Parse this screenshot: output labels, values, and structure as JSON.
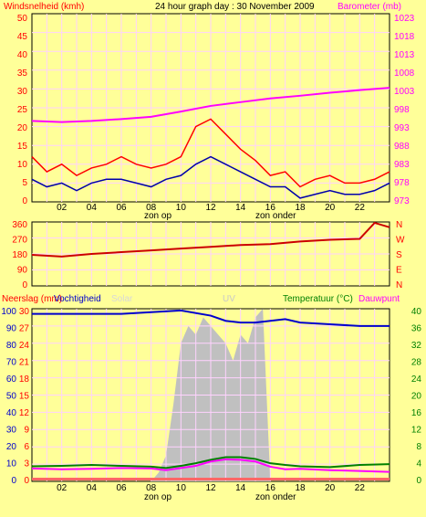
{
  "chart_data": [
    {
      "type": "line",
      "title": "24 hour graph day : 30 November 2009",
      "y_left_label": "Windsnelheid (kmh)",
      "y_right_label": "Barometer (mb)",
      "y_left_ticks": [
        "50",
        "45",
        "40",
        "35",
        "30",
        "25",
        "20",
        "15",
        "10",
        "5",
        "0"
      ],
      "y_right_ticks": [
        "1023",
        "1018",
        "1013",
        "1008",
        "1003",
        "998",
        "993",
        "988",
        "983",
        "978",
        "973"
      ],
      "y_left_range": [
        0,
        50
      ],
      "y_right_range": [
        973,
        1023
      ],
      "x_ticks": [
        "02",
        "04",
        "06",
        "08",
        "10",
        "12",
        "14",
        "16",
        "18",
        "20",
        "22"
      ],
      "x_range_hours": [
        0,
        24
      ],
      "x_annotations": [
        "zon op",
        "zon onder"
      ],
      "series": [
        {
          "color": "#ff00ff",
          "x": [
            0,
            2,
            4,
            6,
            8,
            10,
            12,
            14,
            16,
            18,
            20,
            22,
            24
          ],
          "values": [
            994.5,
            994.2,
            994.5,
            995,
            995.6,
            997,
            998.5,
            999.5,
            1000.5,
            1001.2,
            1002,
            1002.7,
            1003.3
          ]
        },
        {
          "color": "#ff0000",
          "x": [
            0,
            1,
            2,
            3,
            4,
            5,
            6,
            7,
            8,
            9,
            10,
            11,
            12,
            13,
            14,
            15,
            16,
            17,
            18,
            19,
            20,
            21,
            22,
            23,
            24
          ],
          "values": [
            12,
            8,
            10,
            7,
            9,
            10,
            12,
            10,
            9,
            10,
            12,
            20,
            22,
            18,
            14,
            11,
            7,
            8,
            4,
            6,
            7,
            5,
            5,
            6,
            8
          ]
        },
        {
          "color": "#0000aa",
          "x": [
            0,
            1,
            2,
            3,
            4,
            5,
            6,
            7,
            8,
            9,
            10,
            11,
            12,
            13,
            14,
            15,
            16,
            17,
            18,
            19,
            20,
            21,
            22,
            23,
            24
          ],
          "values": [
            6,
            4,
            5,
            3,
            5,
            6,
            6,
            5,
            4,
            6,
            7,
            10,
            12,
            10,
            8,
            6,
            4,
            4,
            1,
            2,
            3,
            2,
            2,
            3,
            5
          ]
        }
      ]
    },
    {
      "type": "line",
      "y_left_ticks": [
        "360",
        "270",
        "180",
        "90",
        "0"
      ],
      "y_left_range": [
        0,
        360
      ],
      "y_right_ticks": [
        "N",
        "W",
        "S",
        "E",
        "N"
      ],
      "series": [
        {
          "color": "#cc0000",
          "x": [
            0,
            2,
            4,
            6,
            8,
            10,
            12,
            14,
            16,
            18,
            20,
            22,
            23,
            24
          ],
          "values": [
            175,
            165,
            180,
            190,
            200,
            210,
            220,
            230,
            235,
            250,
            260,
            265,
            355,
            330
          ]
        }
      ]
    },
    {
      "type": "area",
      "y_left_label": "Neerslag (mm)",
      "y_left2_label": "Vochtigheid",
      "y_left3_label": "Solar",
      "uv_label": "UV",
      "y_right_label": "Temperatuur (°C)",
      "y_right2_label": "Dauwpunt",
      "y_left_ticks": [
        "100",
        "90",
        "80",
        "70",
        "60",
        "50",
        "40",
        "30",
        "20",
        "10",
        "0"
      ],
      "y_left_range": [
        0,
        100
      ],
      "y_rain_ticks": [
        "30",
        "27",
        "24",
        "21",
        "18",
        "15",
        "12",
        "9",
        "6",
        "3",
        "0"
      ],
      "y_right_ticks": [
        "40",
        "36",
        "32",
        "28",
        "24",
        "20",
        "16",
        "12",
        "8",
        "4",
        "0"
      ],
      "y_right_range": [
        0,
        40
      ],
      "x_ticks": [
        "02",
        "04",
        "06",
        "08",
        "10",
        "12",
        "14",
        "16",
        "18",
        "20",
        "22"
      ],
      "x_annotations": [
        "zon op",
        "zon onder"
      ],
      "series": [
        {
          "name": "Vochtigheid",
          "color": "#0000cc",
          "x": [
            0,
            2,
            4,
            6,
            8,
            10,
            12,
            13,
            14,
            15,
            16,
            17,
            18,
            20,
            22,
            24
          ],
          "values": [
            97,
            97,
            97,
            97,
            98,
            99,
            96,
            93,
            92,
            92,
            93,
            94,
            92,
            91,
            90,
            90
          ]
        },
        {
          "name": "Temperatuur",
          "color": "#008000",
          "x": [
            0,
            2,
            4,
            6,
            8,
            9,
            10,
            11,
            12,
            13,
            14,
            15,
            16,
            17,
            18,
            20,
            22,
            24
          ],
          "values": [
            3.5,
            3.6,
            3.8,
            3.6,
            3.4,
            3.1,
            3.6,
            4.2,
            5,
            5.6,
            5.6,
            5.2,
            4.2,
            3.8,
            3.5,
            3.3,
            3.8,
            4
          ]
        },
        {
          "name": "Dauwpunt",
          "color": "#ff00ff",
          "x": [
            0,
            2,
            4,
            6,
            8,
            9,
            10,
            11,
            12,
            13,
            14,
            15,
            16,
            17,
            18,
            20,
            22,
            24
          ],
          "values": [
            3,
            2.8,
            2.9,
            3.1,
            3,
            2.6,
            3.1,
            3.6,
            4.6,
            5.1,
            5,
            4.6,
            3.4,
            2.8,
            2.9,
            2.6,
            2.4,
            2.2
          ]
        },
        {
          "name": "Solar",
          "color": "#c0c0c0",
          "x": [
            8,
            8.5,
            9,
            9.5,
            10,
            10.5,
            11,
            11.5,
            12,
            12.5,
            13,
            13.5,
            14,
            14.5,
            15,
            15.5,
            16
          ],
          "values": [
            0,
            5,
            15,
            45,
            80,
            90,
            85,
            95,
            90,
            85,
            80,
            70,
            85,
            80,
            95,
            100,
            0
          ]
        },
        {
          "name": "Neerslag",
          "color": "#ff6666",
          "x": [
            0,
            24
          ],
          "values": [
            0,
            0
          ]
        }
      ]
    }
  ]
}
